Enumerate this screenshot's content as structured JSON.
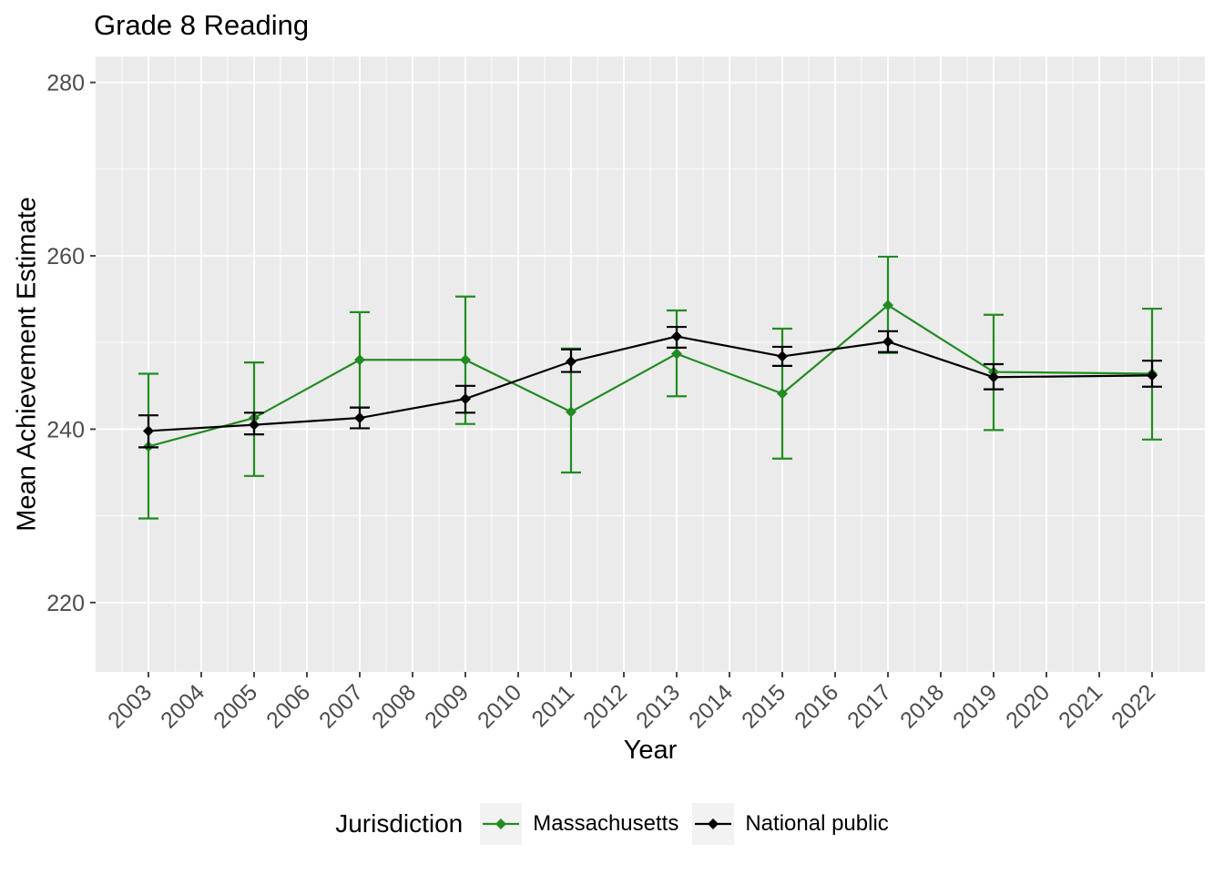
{
  "title": "Grade 8 Reading",
  "x_axis": {
    "label": "Year",
    "tick_labels": [
      "2003",
      "2004",
      "2005",
      "2006",
      "2007",
      "2008",
      "2009",
      "2010",
      "2011",
      "2012",
      "2013",
      "2014",
      "2015",
      "2016",
      "2017",
      "2018",
      "2019",
      "2020",
      "2021",
      "2022"
    ]
  },
  "y_axis": {
    "label": "Mean Achievement Estimate",
    "tick_labels": [
      "220",
      "240",
      "260",
      "280"
    ]
  },
  "legend": {
    "title": "Jurisdiction",
    "entries": [
      {
        "label": "Massachusetts",
        "color": "#228B22"
      },
      {
        "label": "National public",
        "color": "#000000"
      }
    ]
  },
  "colors": {
    "panel_background": "#EBEBEB",
    "gridline": "#FFFFFF",
    "tick_text": "#4D4D4D",
    "tick_mark": "#333333",
    "legend_key_background": "#F2F2F2"
  },
  "chart_data": {
    "type": "line",
    "title": "Grade 8 Reading",
    "xlabel": "Year",
    "ylabel": "Mean Achievement Estimate",
    "x": [
      2003,
      2005,
      2007,
      2009,
      2011,
      2013,
      2015,
      2017,
      2019,
      2022
    ],
    "series": [
      {
        "name": "Massachusetts",
        "color": "#228B22",
        "values": [
          238.0,
          241.3,
          248.0,
          248.0,
          242.0,
          248.7,
          244.1,
          254.3,
          246.6,
          246.4
        ],
        "ci_low": [
          229.7,
          234.6,
          242.5,
          240.6,
          235.0,
          243.8,
          236.6,
          248.8,
          239.9,
          238.8
        ],
        "ci_high": [
          246.4,
          247.7,
          253.5,
          255.3,
          249.3,
          253.7,
          251.6,
          259.9,
          253.2,
          253.9
        ]
      },
      {
        "name": "National public",
        "color": "#000000",
        "values": [
          239.8,
          240.5,
          241.3,
          243.5,
          247.8,
          250.7,
          248.4,
          250.1,
          246.0,
          246.2
        ],
        "ci_low": [
          237.9,
          239.4,
          240.1,
          241.9,
          246.6,
          249.4,
          247.3,
          248.9,
          244.6,
          244.9
        ],
        "ci_high": [
          241.6,
          241.9,
          242.5,
          245.0,
          249.2,
          251.8,
          249.5,
          251.3,
          247.5,
          247.9
        ]
      }
    ],
    "xlim": [
      2002,
      2023
    ],
    "ylim": [
      212,
      283
    ],
    "x_breaks": [
      2003,
      2004,
      2005,
      2006,
      2007,
      2008,
      2009,
      2010,
      2011,
      2012,
      2013,
      2014,
      2015,
      2016,
      2017,
      2018,
      2019,
      2020,
      2021,
      2022
    ],
    "y_breaks": [
      220,
      240,
      260,
      280
    ],
    "y_minor_breaks": [
      230,
      250,
      270
    ],
    "x_tick_angle": 45,
    "grid": true,
    "legend_position": "bottom",
    "legend_title": "Jurisdiction",
    "marker": "diamond",
    "error_bars": true
  }
}
